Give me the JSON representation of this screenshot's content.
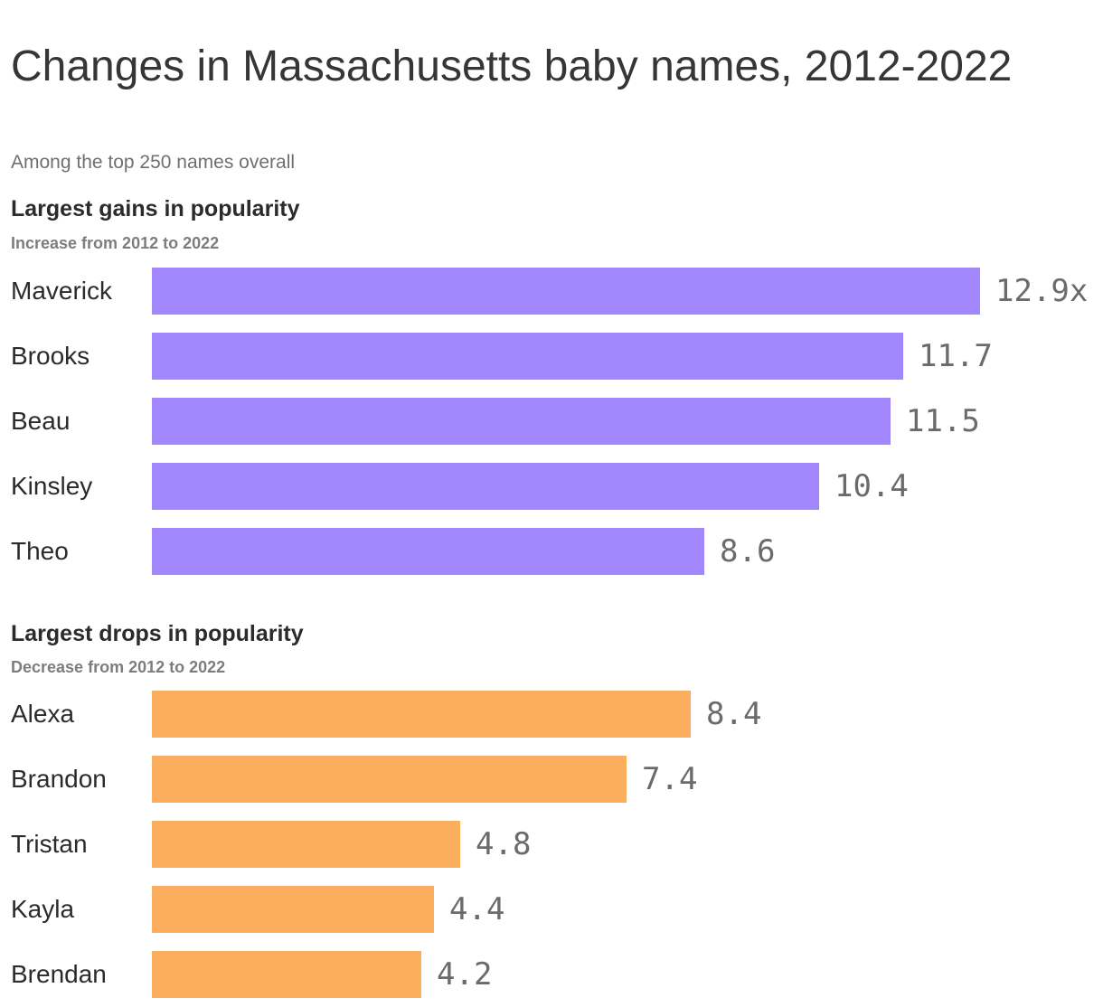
{
  "page": {
    "title": "Changes in Massachusetts baby names, 2012-2022",
    "subtitle": "Among the top 250 names overall"
  },
  "colors": {
    "gain_bar": "#a286fb",
    "drop_bar": "#fcae5f",
    "title_text": "#363636",
    "muted_text": "#6f6f6f",
    "name_text": "#2b2b2b",
    "value_text": "#6b6b6b"
  },
  "chart_data": [
    {
      "type": "bar",
      "orientation": "horizontal",
      "title": "Largest gains in popularity",
      "subtitle": "Increase from 2012 to 2022",
      "categories": [
        "Maverick",
        "Brooks",
        "Beau",
        "Kinsley",
        "Theo"
      ],
      "values": [
        12.9,
        11.7,
        11.5,
        10.4,
        8.6
      ],
      "value_labels": [
        "12.9x",
        "11.7",
        "11.5",
        "10.4",
        "8.6"
      ],
      "bar_color": "#a286fb",
      "xlim": [
        0,
        12.9
      ],
      "grid": false,
      "legend": false
    },
    {
      "type": "bar",
      "orientation": "horizontal",
      "title": "Largest drops in popularity",
      "subtitle": "Decrease from 2012 to 2022",
      "categories": [
        "Alexa",
        "Brandon",
        "Tristan",
        "Kayla",
        "Brendan"
      ],
      "values": [
        8.4,
        7.4,
        4.8,
        4.4,
        4.2
      ],
      "value_labels": [
        "8.4",
        "7.4",
        "4.8",
        "4.4",
        "4.2"
      ],
      "bar_color": "#fcae5f",
      "xlim": [
        0,
        12.9
      ],
      "grid": false,
      "legend": false
    }
  ]
}
